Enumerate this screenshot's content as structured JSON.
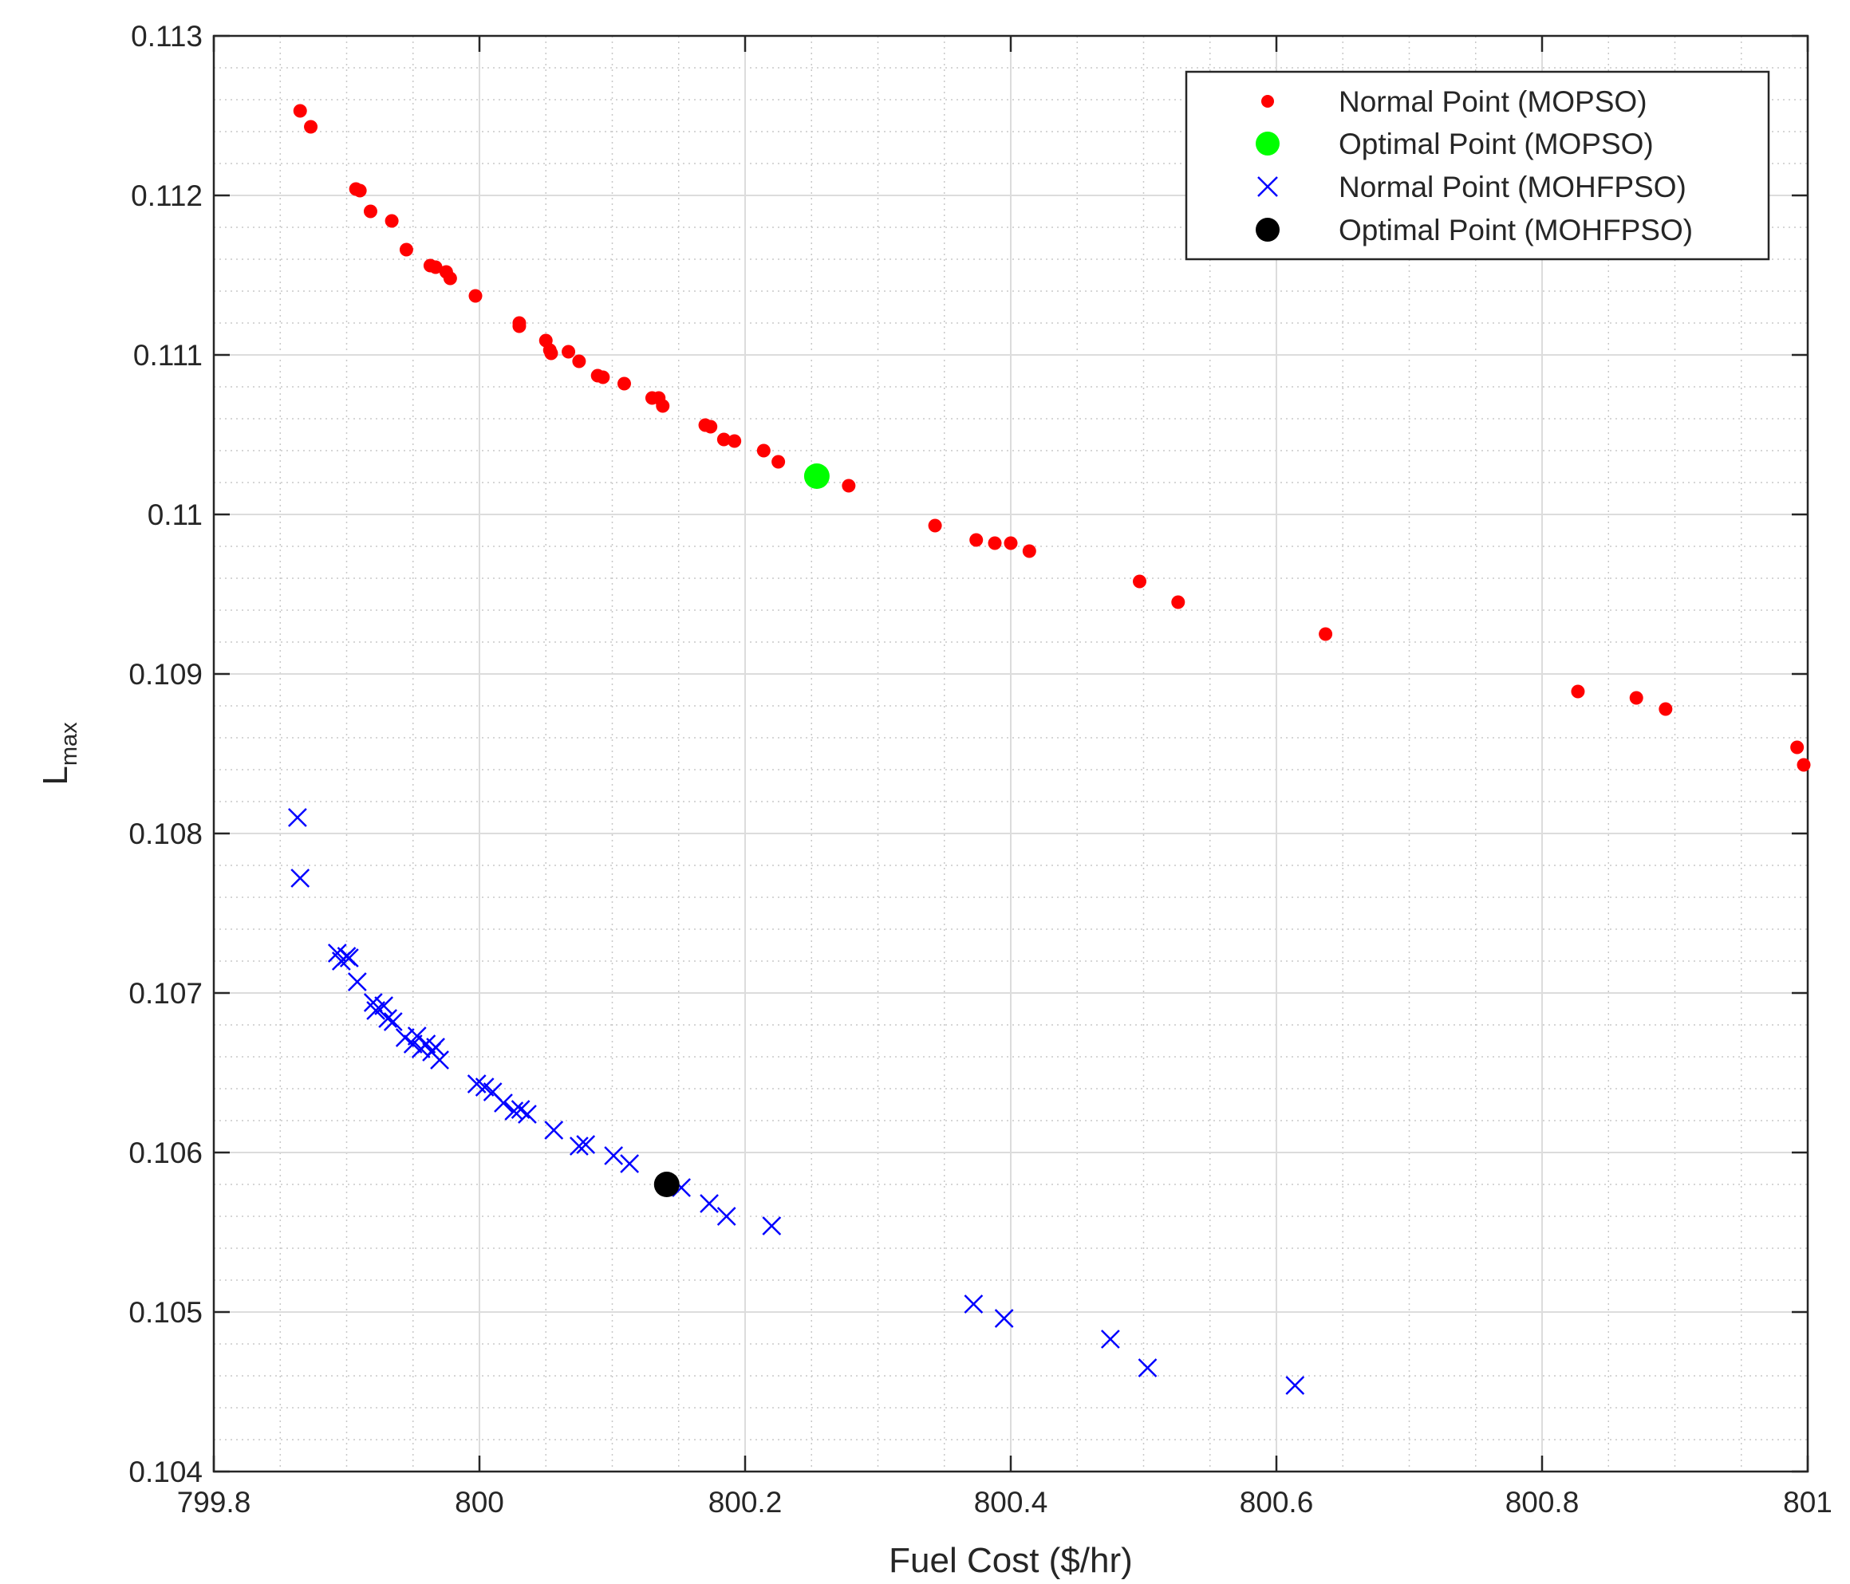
{
  "chart_data": {
    "type": "scatter",
    "title": "",
    "xlabel": "Fuel Cost ($/hr)",
    "ylabel_main": "L",
    "ylabel_sub": "max",
    "xlim": [
      799.8,
      801
    ],
    "ylim": [
      0.104,
      0.113
    ],
    "xticks": [
      799.8,
      800,
      800.2,
      800.4,
      800.6,
      800.8,
      801
    ],
    "xtick_labels": [
      "799.8",
      "800",
      "800.2",
      "800.4",
      "800.6",
      "800.8",
      "801"
    ],
    "yticks": [
      0.104,
      0.105,
      0.106,
      0.107,
      0.108,
      0.109,
      0.11,
      0.111,
      0.112,
      0.113
    ],
    "ytick_labels": [
      "0.104",
      "0.105",
      "0.106",
      "0.107",
      "0.108",
      "0.109",
      "0.11",
      "0.111",
      "0.112",
      "0.113"
    ],
    "grid": true,
    "minor_grid": true,
    "legend_position": "top-right",
    "series": [
      {
        "name": "Normal Point (MOPSO)",
        "marker": "dot",
        "color": "#ff0000",
        "points": [
          [
            799.865,
            0.11253
          ],
          [
            799.873,
            0.11243
          ],
          [
            799.907,
            0.11204
          ],
          [
            799.91,
            0.11203
          ],
          [
            799.918,
            0.1119
          ],
          [
            799.934,
            0.11184
          ],
          [
            799.945,
            0.11166
          ],
          [
            799.963,
            0.11156
          ],
          [
            799.967,
            0.11155
          ],
          [
            799.975,
            0.11152
          ],
          [
            799.978,
            0.11148
          ],
          [
            799.997,
            0.11137
          ],
          [
            800.03,
            0.1112
          ],
          [
            800.03,
            0.11118
          ],
          [
            800.05,
            0.11109
          ],
          [
            800.053,
            0.11103
          ],
          [
            800.054,
            0.11101
          ],
          [
            800.067,
            0.11102
          ],
          [
            800.075,
            0.11096
          ],
          [
            800.089,
            0.11087
          ],
          [
            800.093,
            0.11086
          ],
          [
            800.109,
            0.11082
          ],
          [
            800.13,
            0.11073
          ],
          [
            800.135,
            0.11073
          ],
          [
            800.138,
            0.11068
          ],
          [
            800.17,
            0.11056
          ],
          [
            800.174,
            0.11055
          ],
          [
            800.184,
            0.11047
          ],
          [
            800.192,
            0.11046
          ],
          [
            800.214,
            0.1104
          ],
          [
            800.225,
            0.11033
          ],
          [
            800.252,
            0.11027
          ],
          [
            800.278,
            0.11018
          ],
          [
            800.343,
            0.10993
          ],
          [
            800.374,
            0.10984
          ],
          [
            800.388,
            0.10982
          ],
          [
            800.4,
            0.10982
          ],
          [
            800.414,
            0.10977
          ],
          [
            800.497,
            0.10958
          ],
          [
            800.526,
            0.10945
          ],
          [
            800.637,
            0.10925
          ],
          [
            800.827,
            0.10889
          ],
          [
            800.871,
            0.10885
          ],
          [
            800.893,
            0.10878
          ],
          [
            800.992,
            0.10854
          ],
          [
            800.997,
            0.10843
          ]
        ]
      },
      {
        "name": "Optimal Point (MOPSO)",
        "marker": "big-dot",
        "color": "#00ff00",
        "points": [
          [
            800.254,
            0.11024
          ]
        ]
      },
      {
        "name": "Normal Point (MOHFPSO)",
        "marker": "x",
        "color": "#0000ff",
        "points": [
          [
            799.863,
            0.1081
          ],
          [
            799.865,
            0.10772
          ],
          [
            799.893,
            0.10725
          ],
          [
            799.896,
            0.1072
          ],
          [
            799.9,
            0.10723
          ],
          [
            799.902,
            0.10722
          ],
          [
            799.908,
            0.10707
          ],
          [
            799.92,
            0.10694
          ],
          [
            799.922,
            0.10689
          ],
          [
            799.928,
            0.10692
          ],
          [
            799.931,
            0.10684
          ],
          [
            799.935,
            0.10682
          ],
          [
            799.944,
            0.10672
          ],
          [
            799.95,
            0.10668
          ],
          [
            799.953,
            0.10673
          ],
          [
            799.956,
            0.10665
          ],
          [
            799.96,
            0.10668
          ],
          [
            799.964,
            0.10663
          ],
          [
            799.967,
            0.10666
          ],
          [
            799.97,
            0.10658
          ],
          [
            799.998,
            0.10643
          ],
          [
            800.004,
            0.10641
          ],
          [
            800.01,
            0.10638
          ],
          [
            800.018,
            0.10631
          ],
          [
            800.026,
            0.10626
          ],
          [
            800.031,
            0.10627
          ],
          [
            800.036,
            0.10624
          ],
          [
            800.056,
            0.10614
          ],
          [
            800.075,
            0.10604
          ],
          [
            800.08,
            0.10605
          ],
          [
            800.101,
            0.10598
          ],
          [
            800.113,
            0.10593
          ],
          [
            800.152,
            0.10578
          ],
          [
            800.173,
            0.10568
          ],
          [
            800.186,
            0.1056
          ],
          [
            800.22,
            0.10554
          ],
          [
            800.372,
            0.10505
          ],
          [
            800.395,
            0.10496
          ],
          [
            800.475,
            0.10483
          ],
          [
            800.503,
            0.10465
          ],
          [
            800.614,
            0.10454
          ]
        ]
      },
      {
        "name": "Optimal Point (MOHFPSO)",
        "marker": "big-dot",
        "color": "#000000",
        "points": [
          [
            800.141,
            0.1058
          ]
        ]
      }
    ]
  }
}
